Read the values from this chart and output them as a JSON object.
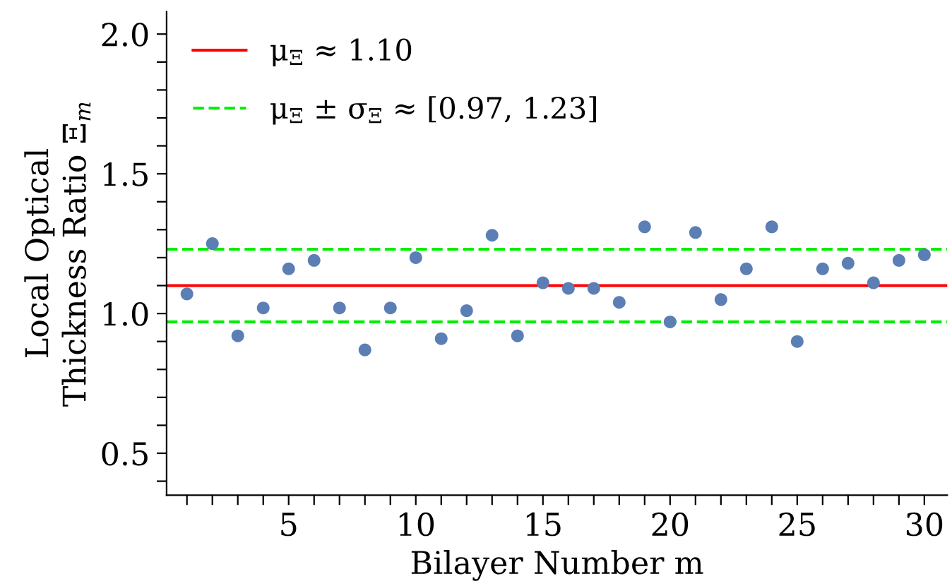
{
  "chart_data": {
    "type": "scatter",
    "xlabel": "Bilayer Number m",
    "ylabel": "Local Optical\nThickness Ratio Ξ$_{m}$",
    "x": [
      1,
      2,
      3,
      4,
      5,
      6,
      7,
      8,
      9,
      10,
      11,
      12,
      13,
      14,
      15,
      16,
      17,
      18,
      19,
      20,
      21,
      22,
      23,
      24,
      25,
      26,
      27,
      28,
      29,
      30
    ],
    "series": [
      {
        "color": "#5b7fb5",
        "values": [
          1.07,
          1.25,
          0.92,
          1.02,
          1.16,
          1.19,
          1.02,
          0.87,
          1.02,
          1.2,
          0.91,
          1.01,
          1.28,
          0.92,
          1.11,
          1.09,
          1.09,
          1.04,
          1.31,
          0.97,
          1.29,
          1.05,
          1.16,
          1.31,
          0.9,
          1.16,
          1.18,
          1.11,
          1.19,
          1.21
        ]
      }
    ],
    "marker": "circle",
    "ref_lines": [
      {
        "axis": "y",
        "value": 1.1,
        "label": "μ$_{Ξ}$ ≈ 1.10",
        "color": "#ff0000",
        "line_style": "solid"
      },
      {
        "axis": "y",
        "value": 0.97,
        "label": "μ$_{Ξ}$ ± σ$_{Ξ}$ ≈ [0.97, 1.23]",
        "color": "#00ee00",
        "line_style": "dashed"
      },
      {
        "axis": "y",
        "value": 1.23,
        "color": "#00ee00",
        "line_style": "dashed"
      }
    ],
    "legend": "top left",
    "xlim": [
      0.2,
      30.9
    ],
    "ylim": [
      0.35,
      2.08
    ],
    "xticks": [
      {
        "value": 1,
        "label": null
      },
      {
        "value": 2,
        "label": null
      },
      {
        "value": 3,
        "label": null
      },
      {
        "value": 4,
        "label": null
      },
      5,
      {
        "value": 6,
        "label": null
      },
      {
        "value": 7,
        "label": null
      },
      {
        "value": 8,
        "label": null
      },
      {
        "value": 9,
        "label": null
      },
      10,
      {
        "value": 11,
        "label": null
      },
      {
        "value": 12,
        "label": null
      },
      {
        "value": 13,
        "label": null
      },
      {
        "value": 14,
        "label": null
      },
      15,
      {
        "value": 16,
        "label": null
      },
      {
        "value": 17,
        "label": null
      },
      {
        "value": 18,
        "label": null
      },
      {
        "value": 19,
        "label": null
      },
      20,
      {
        "value": 21,
        "label": null
      },
      {
        "value": 22,
        "label": null
      },
      {
        "value": 23,
        "label": null
      },
      {
        "value": 24,
        "label": null
      },
      25,
      {
        "value": 26,
        "label": null
      },
      {
        "value": 27,
        "label": null
      },
      {
        "value": 28,
        "label": null
      },
      {
        "value": 29,
        "label": null
      },
      30
    ],
    "yticks": [
      {
        "value": 0.4,
        "label": null
      },
      {
        "value": 0.5,
        "label": "0.5"
      },
      {
        "value": 0.6,
        "label": null
      },
      {
        "value": 0.7,
        "label": null
      },
      {
        "value": 0.8,
        "label": null
      },
      {
        "value": 0.9,
        "label": null
      },
      {
        "value": 1.0,
        "label": "1.0"
      },
      {
        "value": 1.1,
        "label": null
      },
      {
        "value": 1.2,
        "label": null
      },
      {
        "value": 1.3,
        "label": null
      },
      {
        "value": 1.4,
        "label": null
      },
      {
        "value": 1.5,
        "label": "1.5"
      },
      {
        "value": 1.6,
        "label": null
      },
      {
        "value": 1.7,
        "label": null
      },
      {
        "value": 1.8,
        "label": null
      },
      {
        "value": 1.9,
        "label": null
      },
      {
        "value": 2.0,
        "label": "2.0"
      }
    ],
    "grid": false
  }
}
